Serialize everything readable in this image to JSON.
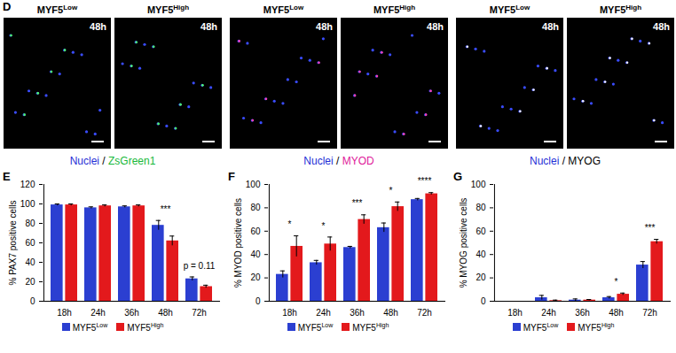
{
  "panel_d": {
    "letter": "D",
    "time": "48h",
    "groups": [
      {
        "labels": [
          "MYF5Low",
          "MYF5High"
        ],
        "caption_parts": [
          "Nuclei",
          "/",
          "ZsGreen1"
        ]
      },
      {
        "labels": [
          "MYF5Low",
          "MYF5High"
        ],
        "caption_parts": [
          "Nuclei",
          "/",
          "MYOD"
        ]
      },
      {
        "labels": [
          "MYF5Low",
          "MYF5High"
        ],
        "caption_parts": [
          "Nuclei",
          "/",
          "MYOG"
        ]
      }
    ]
  },
  "chart_data": [
    {
      "type": "bar",
      "panel": "E",
      "y_label": "% PAX7 positive cells",
      "categories": [
        "18h",
        "24h",
        "36h",
        "48h",
        "72h"
      ],
      "series": [
        {
          "name": "MYF5Low",
          "color": "#2b3fd1",
          "values": [
            99,
            96,
            97,
            78,
            23
          ],
          "errors": [
            1,
            1,
            1,
            5,
            2
          ]
        },
        {
          "name": "MYF5High",
          "color": "#e3191c",
          "values": [
            99,
            98,
            98,
            62,
            15
          ],
          "errors": [
            1,
            1,
            1,
            5,
            1.5
          ]
        }
      ],
      "ylim": [
        0,
        120
      ],
      "yticks": [
        0,
        20,
        40,
        60,
        80,
        100,
        120
      ],
      "annotations": [
        {
          "category": "48h",
          "text": "***"
        },
        {
          "category": "72h",
          "text": "p = 0.11"
        }
      ],
      "legend": "bottom"
    },
    {
      "type": "bar",
      "panel": "F",
      "y_label": "% MYOD positive cells",
      "categories": [
        "18h",
        "24h",
        "36h",
        "48h",
        "72h"
      ],
      "series": [
        {
          "name": "MYF5Low",
          "color": "#2b3fd1",
          "values": [
            23,
            33,
            46,
            63,
            87
          ],
          "errors": [
            3,
            2,
            1,
            4,
            1
          ]
        },
        {
          "name": "MYF5High",
          "color": "#e3191c",
          "values": [
            47,
            49,
            70,
            81,
            92
          ],
          "errors": [
            9,
            6,
            4,
            4,
            1
          ]
        }
      ],
      "ylim": [
        0,
        100
      ],
      "yticks": [
        0,
        20,
        40,
        60,
        80,
        100
      ],
      "annotations": [
        {
          "category": "18h",
          "text": "*"
        },
        {
          "category": "24h",
          "text": "*"
        },
        {
          "category": "36h",
          "text": "***"
        },
        {
          "category": "48h",
          "text": "*"
        },
        {
          "category": "72h",
          "text": "****"
        }
      ],
      "legend": "bottom"
    },
    {
      "type": "bar",
      "panel": "G",
      "y_label": "% MYOG positive cells",
      "categories": [
        "18h",
        "24h",
        "36h",
        "48h",
        "72h"
      ],
      "series": [
        {
          "name": "MYF5Low",
          "color": "#2b3fd1",
          "values": [
            0,
            3,
            1,
            3,
            31
          ],
          "errors": [
            0,
            2,
            1,
            1,
            3
          ]
        },
        {
          "name": "MYF5High",
          "color": "#e3191c",
          "values": [
            0,
            0.5,
            1,
            6,
            51
          ],
          "errors": [
            0,
            0.5,
            0.5,
            1,
            2
          ]
        }
      ],
      "ylim": [
        0,
        100
      ],
      "yticks": [
        0,
        20,
        40,
        60,
        80,
        100
      ],
      "annotations": [
        {
          "category": "48h",
          "text": "*"
        },
        {
          "category": "72h",
          "text": "***"
        }
      ],
      "legend": "bottom"
    }
  ]
}
